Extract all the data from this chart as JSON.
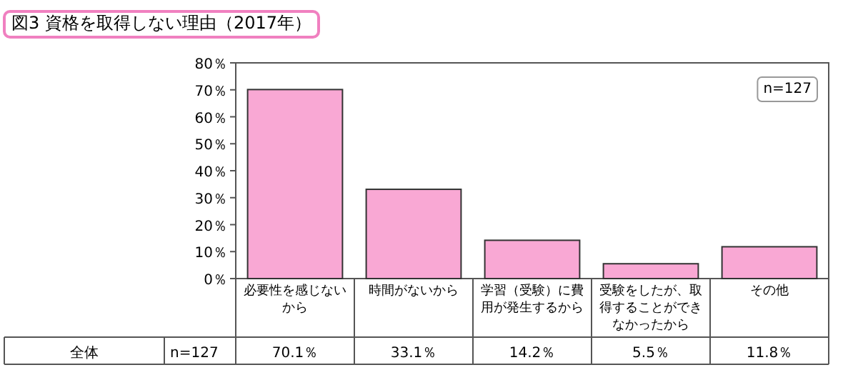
{
  "chart_data": {
    "type": "bar",
    "title": "図3 資格を取得しない理由（2017年）",
    "categories": [
      "必要性を感じないから",
      "時間がないから",
      "学習（受験）に費用が発生するから",
      "受験をしたが、取得することができなかったから",
      "その他"
    ],
    "values": [
      70.1,
      33.1,
      14.2,
      5.5,
      11.8
    ],
    "value_labels": [
      "70.1％",
      "33.1％",
      "14.2％",
      "5.5％",
      "11.8％"
    ],
    "color": "#f9a8d4",
    "ylim": [
      0,
      80
    ],
    "yticks": [
      {
        "value": 0,
        "label": "0％"
      },
      {
        "value": 10,
        "label": "10％"
      },
      {
        "value": 20,
        "label": "20％"
      },
      {
        "value": 30,
        "label": "30％"
      },
      {
        "value": 40,
        "label": "40％"
      },
      {
        "value": 50,
        "label": "50％"
      },
      {
        "value": 60,
        "label": "60％"
      },
      {
        "value": 70,
        "label": "70％"
      },
      {
        "value": 80,
        "label": "80％"
      }
    ],
    "annotations": [
      "n=127",
      "全体",
      "n=127"
    ],
    "grid": false
  }
}
